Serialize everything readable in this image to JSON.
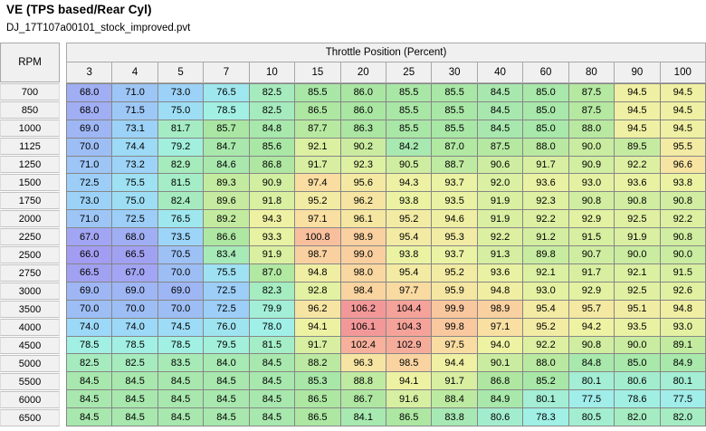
{
  "window": {
    "title": "VE (TPS based/Rear Cyl)",
    "filename": "DJ_17T107a00101_stock_improved.pvt"
  },
  "table": {
    "row_axis_label": "RPM",
    "col_axis_label": "Throttle Position (Percent)",
    "columns": [
      3,
      4,
      5,
      7,
      10,
      15,
      20,
      25,
      30,
      40,
      60,
      80,
      90,
      100
    ],
    "rows": [
      {
        "rpm": 700,
        "values": [
          68.0,
          71.0,
          73.0,
          76.5,
          82.5,
          85.5,
          86.0,
          85.5,
          85.5,
          84.5,
          85.0,
          87.5,
          94.5,
          94.5
        ]
      },
      {
        "rpm": 850,
        "values": [
          68.0,
          71.5,
          75.0,
          78.5,
          82.5,
          86.5,
          86.0,
          85.5,
          85.5,
          84.5,
          85.0,
          87.5,
          94.5,
          94.5
        ]
      },
      {
        "rpm": 1000,
        "values": [
          69.0,
          73.1,
          81.7,
          85.7,
          84.8,
          87.7,
          86.3,
          85.5,
          85.5,
          84.5,
          85.0,
          88.0,
          94.5,
          94.5
        ]
      },
      {
        "rpm": 1125,
        "values": [
          70.0,
          74.4,
          79.2,
          84.7,
          85.6,
          92.1,
          90.2,
          84.2,
          87.0,
          87.5,
          88.0,
          90.0,
          89.5,
          95.5
        ]
      },
      {
        "rpm": 1250,
        "values": [
          71.0,
          73.2,
          82.9,
          84.6,
          86.8,
          91.7,
          92.3,
          90.5,
          88.7,
          90.6,
          91.7,
          90.9,
          92.2,
          96.6
        ]
      },
      {
        "rpm": 1500,
        "values": [
          72.5,
          75.5,
          81.5,
          89.3,
          90.9,
          97.4,
          95.6,
          94.3,
          93.7,
          92.0,
          93.6,
          93.0,
          93.6,
          93.8
        ]
      },
      {
        "rpm": 1750,
        "values": [
          73.0,
          75.0,
          82.4,
          89.6,
          91.8,
          95.2,
          96.2,
          93.8,
          93.5,
          91.9,
          92.3,
          90.8,
          90.8,
          90.8
        ]
      },
      {
        "rpm": 2000,
        "values": [
          71.0,
          72.5,
          76.5,
          89.2,
          94.3,
          97.1,
          96.1,
          95.2,
          94.6,
          91.9,
          92.2,
          92.9,
          92.5,
          92.2
        ]
      },
      {
        "rpm": 2250,
        "values": [
          67.0,
          68.0,
          73.5,
          86.6,
          93.3,
          100.8,
          98.9,
          95.4,
          95.3,
          92.2,
          91.2,
          91.5,
          91.9,
          90.8
        ]
      },
      {
        "rpm": 2500,
        "values": [
          66.0,
          66.5,
          70.5,
          83.4,
          91.9,
          98.7,
          99.0,
          93.8,
          93.7,
          91.3,
          89.8,
          90.7,
          90.0,
          90.0
        ]
      },
      {
        "rpm": 2750,
        "values": [
          66.5,
          67.0,
          70.0,
          75.5,
          87.0,
          94.8,
          98.0,
          95.4,
          95.2,
          93.6,
          92.1,
          91.7,
          92.1,
          91.5
        ]
      },
      {
        "rpm": 3000,
        "values": [
          69.0,
          69.0,
          69.0,
          72.5,
          82.3,
          92.8,
          98.4,
          97.7,
          95.9,
          94.8,
          93.0,
          92.9,
          92.5,
          92.6
        ]
      },
      {
        "rpm": 3500,
        "values": [
          70.0,
          70.0,
          70.0,
          72.5,
          79.9,
          96.2,
          106.2,
          104.4,
          99.9,
          98.9,
          95.4,
          95.7,
          95.1,
          94.8
        ]
      },
      {
        "rpm": 4000,
        "values": [
          74.0,
          74.0,
          74.5,
          76.0,
          78.0,
          94.1,
          106.1,
          104.3,
          99.8,
          97.1,
          95.2,
          94.2,
          93.5,
          93.0
        ]
      },
      {
        "rpm": 4500,
        "values": [
          78.5,
          78.5,
          78.5,
          79.5,
          81.5,
          91.7,
          102.4,
          102.9,
          97.5,
          94.0,
          92.2,
          90.8,
          90.0,
          89.1
        ]
      },
      {
        "rpm": 5000,
        "values": [
          82.5,
          82.5,
          83.5,
          84.0,
          84.5,
          88.2,
          96.3,
          98.5,
          94.4,
          90.1,
          88.0,
          84.8,
          85.0,
          84.9
        ]
      },
      {
        "rpm": 5500,
        "values": [
          84.5,
          84.5,
          84.5,
          84.5,
          84.5,
          85.3,
          88.8,
          94.1,
          91.7,
          86.8,
          85.2,
          80.1,
          80.6,
          80.1
        ]
      },
      {
        "rpm": 6000,
        "values": [
          84.5,
          84.5,
          84.5,
          84.5,
          84.5,
          86.5,
          86.7,
          91.6,
          88.4,
          84.9,
          80.1,
          77.5,
          78.6,
          77.5
        ]
      },
      {
        "rpm": 6500,
        "values": [
          84.5,
          84.5,
          84.5,
          84.5,
          84.5,
          86.5,
          84.1,
          86.5,
          83.8,
          80.6,
          78.3,
          80.5,
          82.0,
          82.0
        ]
      }
    ]
  },
  "heatmap": {
    "color_stops": [
      [
        66,
        "#a29df2"
      ],
      [
        70,
        "#9dbef4"
      ],
      [
        74,
        "#9cd8f8"
      ],
      [
        78,
        "#a0f0e8"
      ],
      [
        82,
        "#a5ecc2"
      ],
      [
        86,
        "#a9e6a2"
      ],
      [
        90,
        "#c9eca0"
      ],
      [
        94,
        "#edf3a3"
      ],
      [
        97,
        "#f9e0a2"
      ],
      [
        100,
        "#f9c69e"
      ],
      [
        103,
        "#f6ab9b"
      ],
      [
        106,
        "#f39898"
      ]
    ]
  },
  "ui_colors": {
    "background": "#ffffff",
    "header_bg": "#f0f0f0",
    "row_header_bg": "#f1f1f1",
    "grid_line": "#868686",
    "header_border": "#a8a8a8",
    "text": "#000000"
  }
}
